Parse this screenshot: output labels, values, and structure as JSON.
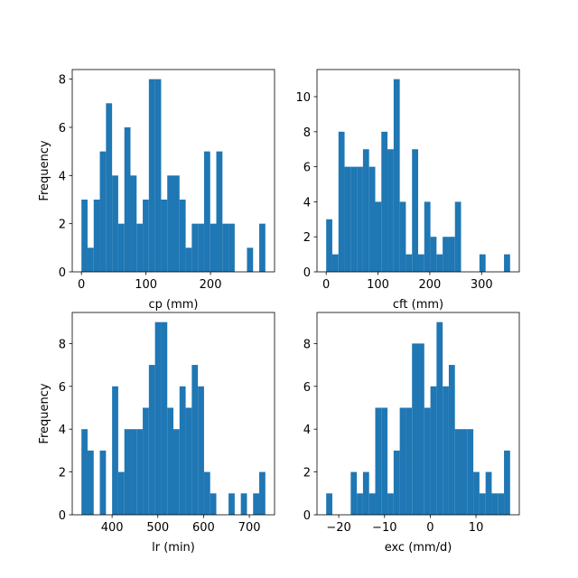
{
  "chart_data": [
    {
      "type": "histogram",
      "xlabel": "cp (mm)",
      "ylabel": "Frequency",
      "color": "#1f77b4",
      "bins": [
        0,
        9.5,
        19,
        28.5,
        38,
        47.5,
        57,
        66.5,
        76,
        85.5,
        95,
        104.5,
        114,
        123.5,
        133,
        142.5,
        152,
        161.5,
        171,
        180.5,
        190,
        199.5,
        209,
        218.5,
        228,
        237.5,
        247,
        256.5,
        266,
        275.5,
        285
      ],
      "values": [
        3,
        1,
        3,
        5,
        7,
        4,
        2,
        6,
        4,
        2,
        3,
        8,
        8,
        3,
        4,
        4,
        3,
        1,
        2,
        2,
        5,
        2,
        5,
        2,
        2,
        0,
        0,
        1,
        0,
        2
      ],
      "xlim": [
        -14.25,
        299.25
      ],
      "ylim": [
        0,
        8.4
      ],
      "xticks": [
        0,
        100,
        200
      ],
      "yticks": [
        0,
        2,
        4,
        6,
        8
      ]
    },
    {
      "type": "histogram",
      "xlabel": "cft (mm)",
      "color": "#1f77b4",
      "bins": [
        0,
        11.8,
        23.7,
        35.5,
        47.3,
        59.2,
        71,
        82.8,
        94.7,
        106.5,
        118.3,
        130.2,
        142,
        153.8,
        165.7,
        177.5,
        189.3,
        201.2,
        213,
        224.8,
        236.7,
        248.5,
        260.3,
        272.2,
        284,
        295.8,
        307.7,
        319.5,
        331.3,
        343.2,
        355
      ],
      "values": [
        3,
        1,
        8,
        6,
        6,
        6,
        7,
        6,
        4,
        8,
        7,
        11,
        4,
        1,
        7,
        1,
        4,
        2,
        1,
        2,
        2,
        4,
        0,
        0,
        0,
        1,
        0,
        0,
        0,
        1
      ],
      "xlim": [
        -17.75,
        372.75
      ],
      "ylim": [
        0,
        11.55
      ],
      "xticks": [
        0,
        100,
        200,
        300
      ],
      "yticks": [
        0,
        2,
        4,
        6,
        8,
        10
      ]
    },
    {
      "type": "histogram",
      "xlabel": "lr (min)",
      "ylabel": "Frequency",
      "color": "#1f77b4",
      "bins": [
        333,
        346.4,
        359.8,
        373.2,
        386.6,
        400,
        413.4,
        426.8,
        440.2,
        453.6,
        467,
        480.4,
        493.8,
        507.2,
        520.6,
        534,
        547.4,
        560.8,
        574.2,
        587.6,
        601,
        614.4,
        627.8,
        641.2,
        654.6,
        668,
        681.4,
        694.8,
        708.2,
        721.6,
        735
      ],
      "values": [
        4,
        3,
        0,
        3,
        0,
        6,
        2,
        4,
        4,
        4,
        5,
        7,
        9,
        9,
        5,
        4,
        6,
        5,
        7,
        6,
        2,
        1,
        0,
        0,
        1,
        0,
        1,
        0,
        1,
        2
      ],
      "xlim": [
        312.9,
        755.1
      ],
      "ylim": [
        0,
        9.45
      ],
      "xticks": [
        400,
        500,
        600,
        700
      ],
      "yticks": [
        0,
        2,
        4,
        6,
        8
      ]
    },
    {
      "type": "histogram",
      "xlabel": "exc (mm/d)",
      "color": "#1f77b4",
      "bins": [
        -22.75,
        -21.41,
        -20.07,
        -18.73,
        -17.39,
        -16.05,
        -14.71,
        -13.37,
        -12.03,
        -10.69,
        -9.35,
        -8.01,
        -6.67,
        -5.33,
        -3.99,
        -2.65,
        -1.31,
        0.03,
        1.37,
        2.71,
        4.05,
        5.39,
        6.73,
        8.07,
        9.41,
        10.75,
        12.09,
        13.43,
        14.77,
        16.11,
        17.45
      ],
      "values": [
        1,
        0,
        0,
        0,
        2,
        1,
        2,
        1,
        5,
        5,
        1,
        3,
        5,
        5,
        8,
        8,
        5,
        6,
        9,
        6,
        7,
        4,
        4,
        4,
        2,
        1,
        2,
        1,
        1,
        3
      ],
      "xlim": [
        -24.76,
        19.46
      ],
      "ylim": [
        0,
        9.45
      ],
      "xticks": [
        {
          "value": -20,
          "label": "−20"
        },
        {
          "value": -10,
          "label": "−10"
        },
        0,
        10
      ],
      "yticks": [
        0,
        2,
        4,
        6,
        8
      ]
    }
  ]
}
